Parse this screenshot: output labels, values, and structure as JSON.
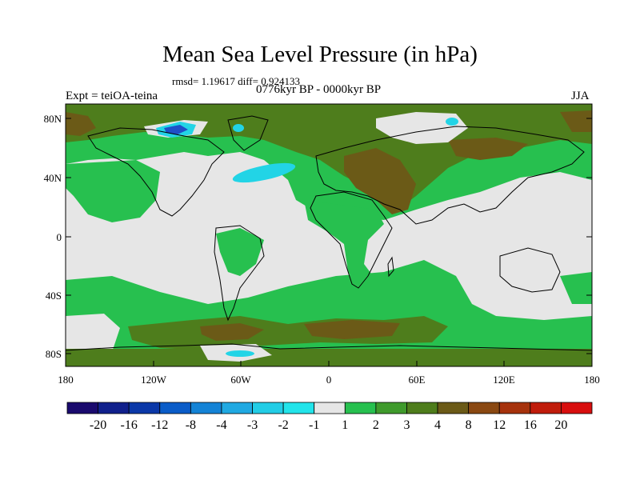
{
  "header": {
    "title": "Mean Sea Level Pressure (in hPa)",
    "stats": "rmsd= 1.19617  diff= 0.924133",
    "experiment": "Expt = teiOA-teina",
    "period": "0776kyr BP - 0000kyr BP",
    "season": "JJA"
  },
  "map": {
    "lat_labels": [
      "80N",
      "40N",
      "0",
      "40S",
      "80S"
    ],
    "lon_labels": [
      "180",
      "120W",
      "60W",
      "0",
      "60E",
      "120E",
      "180"
    ],
    "field_colors": {
      "background": "#e6e6e6",
      "green": "#27c04f",
      "olive": "#4e7d1c",
      "brown": "#6b5a17",
      "cyan": "#22d4e6",
      "light_blue": "#25a8d9",
      "blue": "#1f4fc8"
    }
  },
  "colorbar": {
    "labels": [
      "-20",
      "-16",
      "-12",
      "-8",
      "-4",
      "-3",
      "-2",
      "-1",
      "1",
      "2",
      "3",
      "4",
      "8",
      "12",
      "16",
      "20"
    ],
    "colors": [
      "#1a0a6e",
      "#10208c",
      "#0b38a8",
      "#0a5cc8",
      "#1483d6",
      "#20a9e2",
      "#22cde6",
      "#22e4ea",
      "#e6e6e6",
      "#27c04f",
      "#3f9a2c",
      "#4e7d1c",
      "#6b5a17",
      "#8a4812",
      "#a6320c",
      "#c01c0b",
      "#d80e0e"
    ]
  }
}
